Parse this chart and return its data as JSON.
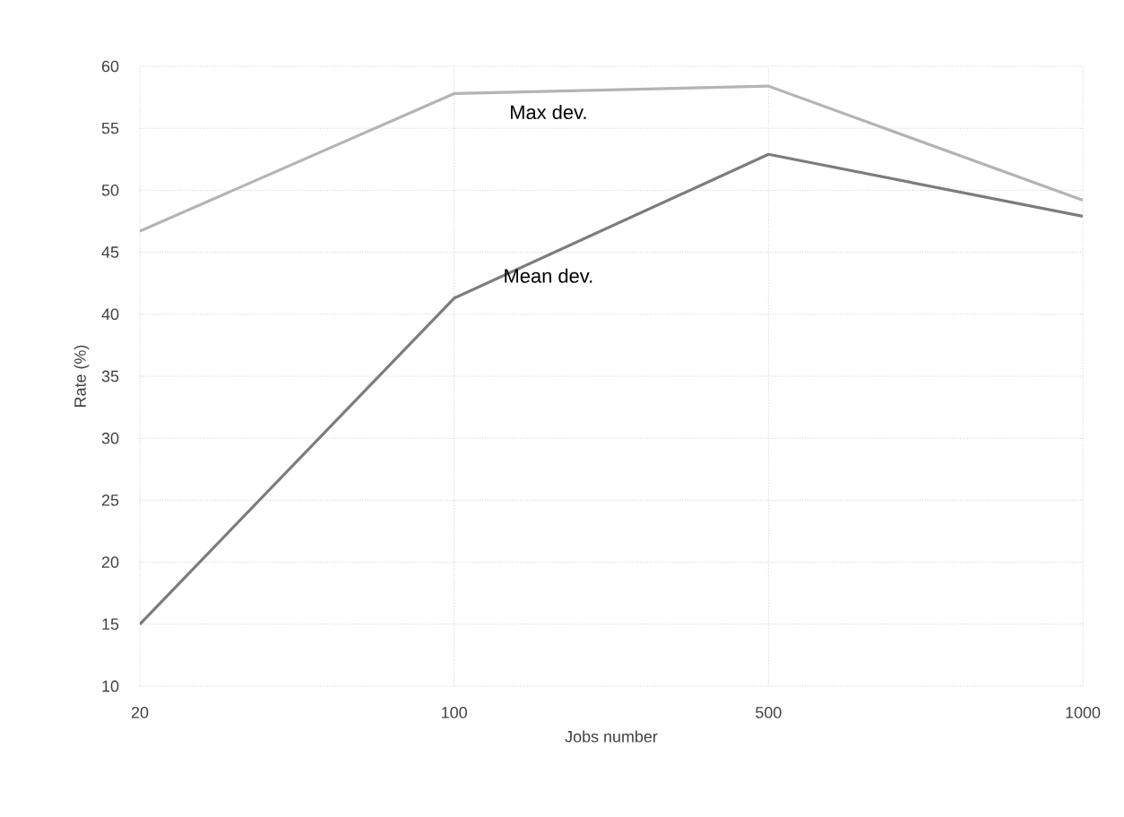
{
  "chart_data": {
    "type": "line",
    "xlabel": "Jobs number",
    "ylabel": "Rate (%)",
    "categories": [
      "20",
      "100",
      "500",
      "1000"
    ],
    "ylim": [
      10,
      60
    ],
    "yticks": [
      10,
      15,
      20,
      25,
      30,
      35,
      40,
      45,
      50,
      55,
      60
    ],
    "grid": true,
    "legend": false,
    "marker": "none",
    "line_style": "solid",
    "series": [
      {
        "name": "Max dev.",
        "color": "#b4b4b4",
        "values": [
          46.7,
          57.8,
          58.4,
          49.2
        ]
      },
      {
        "name": "Mean dev.",
        "color": "#7c7c7c",
        "values": [
          15,
          41.3,
          52.9,
          47.9
        ]
      }
    ]
  }
}
